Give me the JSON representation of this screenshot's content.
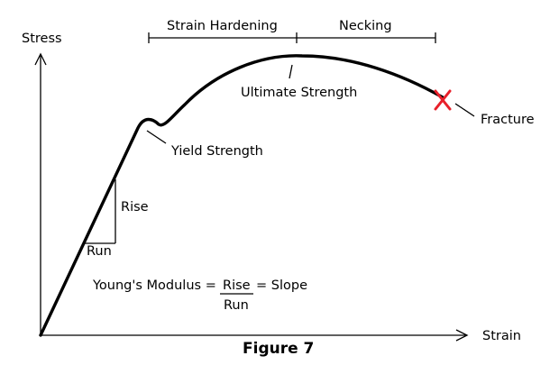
{
  "axes": {
    "y_label": "Stress",
    "x_label": "Strain"
  },
  "regions": {
    "strain_hardening": "Strain Hardening",
    "necking": "Necking"
  },
  "points": {
    "ultimate_strength": "Ultimate Strength",
    "yield_strength": "Yield Strength",
    "fracture": "Fracture"
  },
  "triangle": {
    "rise": "Rise",
    "run": "Run"
  },
  "formula": {
    "lhs": "Young's Modulus =",
    "numerator": "Rise",
    "rhs": "= Slope",
    "denominator": "Run"
  },
  "caption": "Figure 7",
  "colors": {
    "line": "#000000",
    "fracture_marker": "#e8202a",
    "background": "#ffffff"
  }
}
